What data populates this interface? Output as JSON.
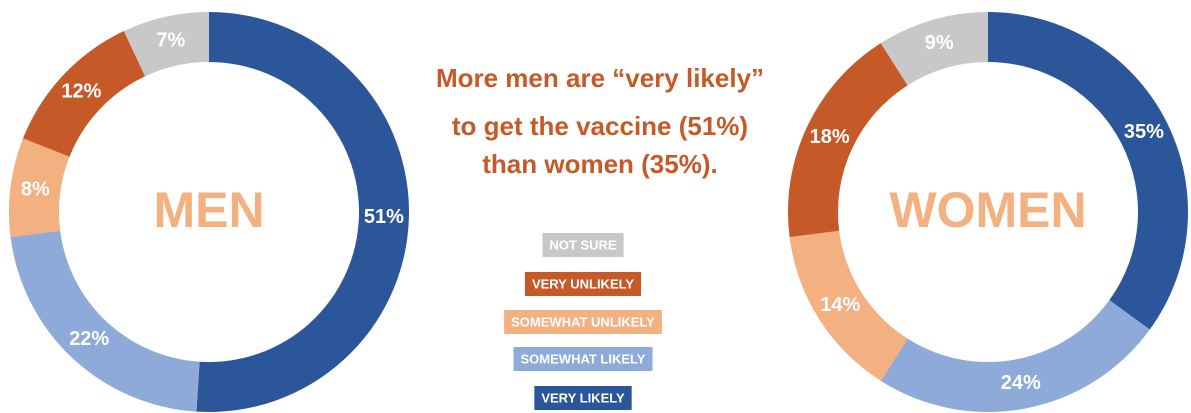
{
  "chart_data": [
    {
      "type": "pie",
      "title": "MEN",
      "categories": [
        "VERY LIKELY",
        "SOMEWHAT LIKELY",
        "SOMEWHAT UNLIKELY",
        "VERY UNLIKELY",
        "NOT SURE"
      ],
      "values": [
        51,
        22,
        8,
        12,
        7
      ],
      "value_labels": [
        "51%",
        "22%",
        "8%",
        "12%",
        "7%"
      ],
      "colors": [
        "#2b579a",
        "#8eaad9",
        "#f3b081",
        "#c55a28",
        "#c8c8c8"
      ]
    },
    {
      "type": "pie",
      "title": "WOMEN",
      "categories": [
        "VERY LIKELY",
        "SOMEWHAT LIKELY",
        "SOMEWHAT UNLIKELY",
        "VERY UNLIKELY",
        "NOT SURE"
      ],
      "values": [
        35,
        24,
        14,
        18,
        9
      ],
      "value_labels": [
        "35%",
        "24%",
        "14%",
        "18%",
        "9%"
      ],
      "colors": [
        "#2b579a",
        "#8eaad9",
        "#f3b081",
        "#c55a28",
        "#c8c8c8"
      ]
    }
  ],
  "annotation": [
    "More men are “very likely”",
    "to get the vaccine (51%)",
    "than women (35%)."
  ]
}
